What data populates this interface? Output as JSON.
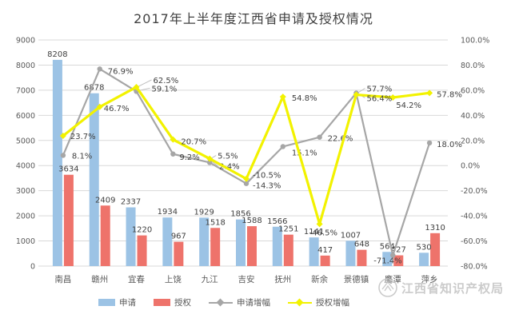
{
  "title": "2017年上半年度江西省申请及授权情况",
  "watermark": {
    "text": "江西省知识产权局",
    "logo": "emblem-icon"
  },
  "legend": {
    "items": [
      {
        "label": "申请",
        "type": "bar",
        "color": "#9CC3E5"
      },
      {
        "label": "授权",
        "type": "bar",
        "color": "#EE736B"
      },
      {
        "label": "申请增幅",
        "type": "line",
        "color": "#A6A6A6"
      },
      {
        "label": "授权增幅",
        "type": "line",
        "color": "#F2F200"
      }
    ]
  },
  "chart_data": {
    "type": "combo-bar-line",
    "title": "2017年上半年度江西省申请及授权情况",
    "categories": [
      "南昌",
      "赣州",
      "宜春",
      "上饶",
      "九江",
      "吉安",
      "抚州",
      "新余",
      "景德镇",
      "鹰潭",
      "萍乡"
    ],
    "series": [
      {
        "name": "申请",
        "type": "bar",
        "axis": "left",
        "color": "#9CC3E5",
        "values": [
          8208,
          6878,
          2337,
          1934,
          1929,
          1856,
          1566,
          1141,
          1007,
          564,
          530
        ]
      },
      {
        "name": "授权",
        "type": "bar",
        "axis": "left",
        "color": "#EE736B",
        "values": [
          3634,
          2409,
          1220,
          967,
          1518,
          1588,
          1251,
          417,
          648,
          427,
          1310
        ]
      },
      {
        "name": "申请增幅",
        "type": "line",
        "axis": "right",
        "color": "#A6A6A6",
        "marker": "circle",
        "values": [
          8.1,
          76.9,
          59.1,
          9.2,
          2.4,
          -14.3,
          15.1,
          22.6,
          57.7,
          -71.4,
          18.0
        ],
        "labels": [
          "8.1%",
          "76.9%",
          "59.1%",
          "9.2%",
          "2.4%",
          "-14.3%",
          "15.1%",
          "22.6%",
          "57.7%",
          "-71.4%",
          "18.0%"
        ]
      },
      {
        "name": "授权增幅",
        "type": "line",
        "axis": "right",
        "color": "#F2F200",
        "marker": "diamond",
        "values": [
          23.7,
          46.7,
          62.5,
          20.7,
          5.5,
          -10.5,
          54.8,
          -46.5,
          56.4,
          54.2,
          57.8
        ],
        "labels": [
          "23.7%",
          "46.7%",
          "62.5%",
          "20.7%",
          "5.5%",
          "-10.5%",
          "54.8%",
          "-46.5%",
          "56.4%",
          "54.2%",
          "57.8%"
        ]
      }
    ],
    "left_axis": {
      "min": 0,
      "max": 9000,
      "step": 1000,
      "ticks": [
        "9000",
        "8000",
        "7000",
        "6000",
        "5000",
        "4000",
        "3000",
        "2000",
        "1000",
        "0"
      ]
    },
    "right_axis": {
      "min": -80,
      "max": 100,
      "step": 20,
      "ticks": [
        "100.0%",
        "80.0%",
        "60.0%",
        "40.0%",
        "20.0%",
        "0.0%",
        "-20.0%",
        "-40.0%",
        "-60.0%",
        "-80.0%"
      ]
    },
    "grid": true,
    "gridline_color": "#D9D9D9",
    "axis_text_color": "#595959",
    "data_label_color": "#404040",
    "legend_position": "bottom"
  }
}
